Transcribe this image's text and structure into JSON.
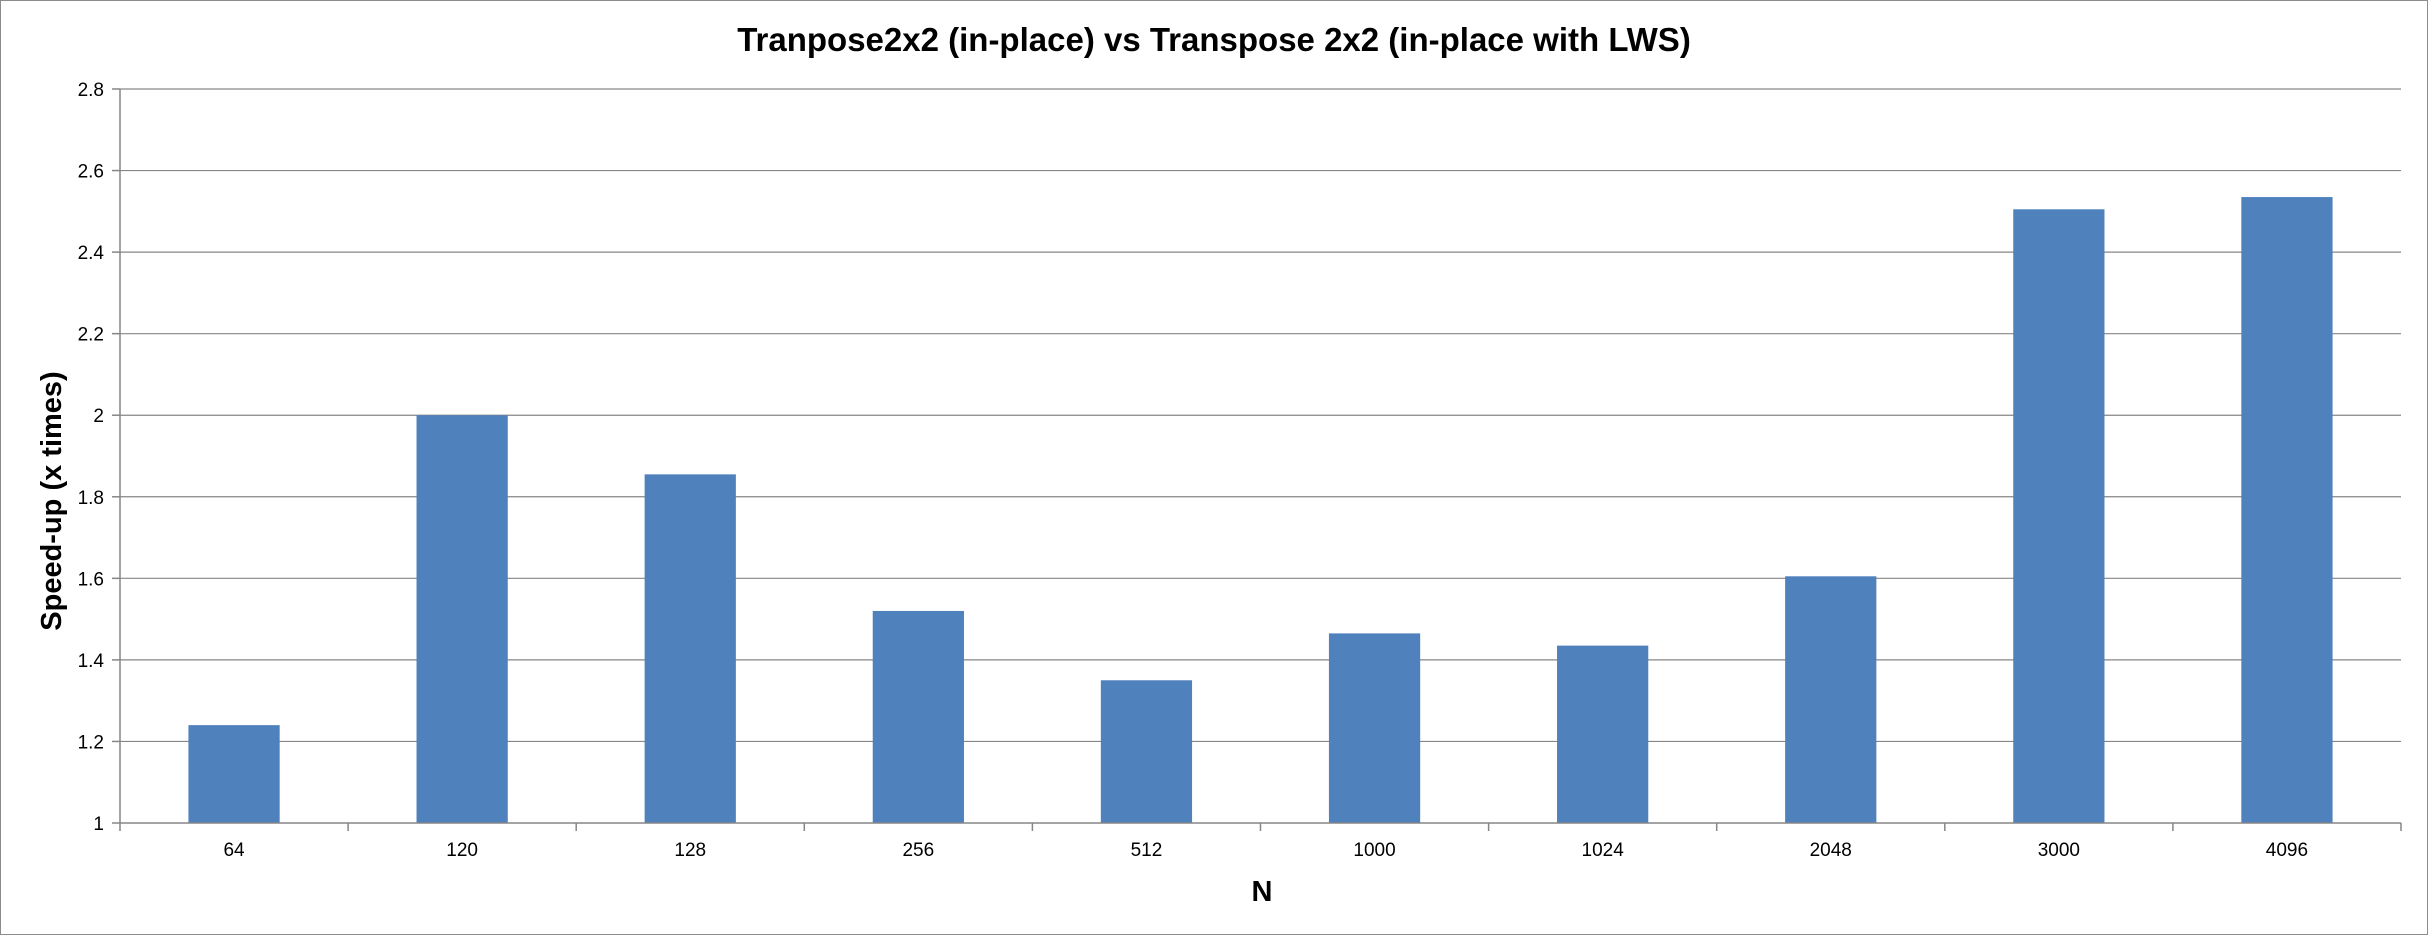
{
  "chart_data": {
    "type": "bar",
    "title": "Tranpose2x2 (in-place) vs Transpose 2x2 (in-place with LWS)",
    "xlabel": "N",
    "ylabel": "Speed-up (x times)",
    "categories": [
      "64",
      "120",
      "128",
      "256",
      "512",
      "1000",
      "1024",
      "2048",
      "3000",
      "4096"
    ],
    "values": [
      1.24,
      2.0,
      1.855,
      1.52,
      1.35,
      1.465,
      1.435,
      1.605,
      2.505,
      2.535
    ],
    "ylim": [
      1,
      2.8
    ],
    "yticks": [
      "1",
      "1.2",
      "1.4",
      "1.6",
      "1.8",
      "2",
      "2.2",
      "2.4",
      "2.6",
      "2.8"
    ],
    "grid": true,
    "legend": "none",
    "bar_color": "#4f81bd"
  }
}
